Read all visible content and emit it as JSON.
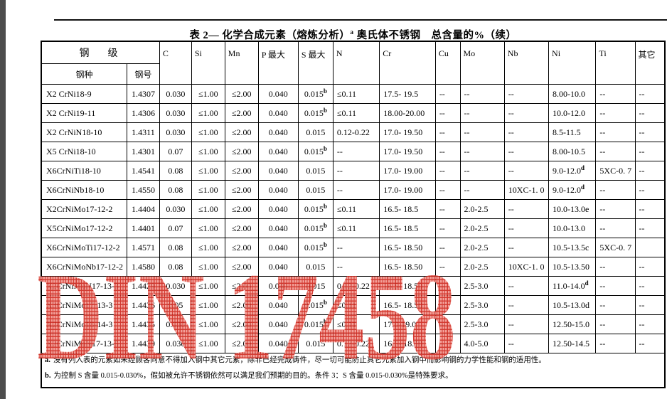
{
  "page": {
    "title": {
      "prefix": "表 2— 化学合成元素（熔炼分析）",
      "sup": "a",
      "suffix": " 奥氏体不锈钢　总含量的%（续）"
    },
    "watermark_text": "DIN 17458",
    "colors": {
      "watermark_red": "#d53026",
      "sidebar_gray": "#4d4d4d",
      "text": "#000000",
      "background": "#ffffff"
    }
  },
  "table": {
    "group_header": "钢　级",
    "sub_headers": [
      "钢种",
      "钢号"
    ],
    "element_headers": [
      "C",
      "Si",
      "Mn",
      "P 最大",
      "S 最大",
      "N",
      "Cr",
      "Cu",
      "Mo",
      "Nb",
      "Ni",
      "Ti",
      "其它"
    ],
    "rows": [
      [
        "X2 CrNi18-9",
        "1.4307",
        "0.030",
        "≤1.00",
        "≤2.00",
        "0.040",
        "0.015^b",
        "≤0.11",
        "17.5- 19.5",
        "--",
        "--",
        "--",
        "8.00-10.0",
        "--",
        "--"
      ],
      [
        "X2 CrNi19-11",
        "1.4306",
        "0.030",
        "≤1.00",
        "≤2.00",
        "0.040",
        "0.015^b",
        "≤0.11",
        "18.00-20.00",
        "--",
        "--",
        "--",
        "10.0-12.0",
        "--",
        "--"
      ],
      [
        "X2 CrNiN18-10",
        "1.4311",
        "0.030",
        "≤1.00",
        "≤2.00",
        "0.040",
        "0.015",
        "0.12-0.22",
        "17.0- 19.50",
        "--",
        "--",
        "--",
        "8.5-11.5",
        "--",
        "--"
      ],
      [
        "X5 CrNi18-10",
        "1.4301",
        "0.07",
        "≤1.00",
        "≤2.00",
        "0.040",
        "0.015^b",
        "--",
        "17.0- 19.50",
        "--",
        "--",
        "--",
        "8.00-10.5",
        "--",
        "--"
      ],
      [
        "X6CrNiTi18-10",
        "1.4541",
        "0.08",
        "≤1.00",
        "≤2.00",
        "0.040",
        "0.015",
        "--",
        "17.0- 19.00",
        "--",
        "--",
        "--",
        "9.0-12.0^d",
        "5XC-0. 7",
        "--"
      ],
      [
        "X6CrNiNb18-10",
        "1.4550",
        "0.08",
        "≤1.00",
        "≤2.00",
        "0.040",
        "0.015",
        "--",
        "17.0- 19.00",
        "--",
        "--",
        "10XC-1. 0",
        "9.0-12.0^d",
        "--",
        "--"
      ],
      [
        "X2CrNiMo17-12-2",
        "1.4404",
        "0.030",
        "≤1.00",
        "≤2.00",
        "0.040",
        "0.015^b",
        "≤0.11",
        "16.5- 18.5",
        "--",
        "2.0-2.5",
        "--",
        "10.0-13.0e",
        "--",
        "--"
      ],
      [
        "X5CrNiMo17-12-2",
        "1.4401",
        "0.07",
        "≤1.00",
        "≤2.00",
        "0.040",
        "0.015^b",
        "≤0.11",
        "16.5- 18.5",
        "--",
        "2.0-2.5",
        "--",
        "10.0-13.0",
        "--",
        "--"
      ],
      [
        "X6CrNiMoTi17-12-2",
        "1.4571",
        "0.08",
        "≤1.00",
        "≤2.00",
        "0.040",
        "0.015^b",
        "--",
        "16.5- 18.50",
        "--",
        "2.0-2.5",
        "--",
        "10.5-13.5c",
        "5XC-0. 7",
        ""
      ],
      [
        "X6CrNiMoNb17-12-2",
        "1.4580",
        "0.08",
        "≤1.00",
        "≤2.00",
        "0.040",
        "0.015",
        "--",
        "16.5- 18.50",
        "--",
        "2.0-2.5",
        "10XC-1. 0",
        "10.5-13.50",
        "--",
        "--"
      ],
      [
        "X2CrNiMoN17-13-3",
        "1.4429",
        "0.030",
        "≤1.00",
        "≤2.00",
        "0.040",
        "0.015",
        "0.12-0.22",
        "16.5- 18.50",
        "--",
        "2.5-3.0",
        "--",
        "11.0-14.0^d",
        "--",
        "--"
      ],
      [
        "X3CrNiMo17-13-3",
        "1.4436",
        "0.05",
        "≤1.00",
        "≤2.00",
        "0.040",
        "0.015^b",
        "≤0.11",
        "16.5- 18.50",
        "--",
        "2.5-3.0",
        "--",
        "10.5-13.0d",
        "--",
        "--"
      ],
      [
        "X2CrNiMo18-14-3",
        "1.4435",
        "0.030",
        "≤1.00",
        "≤2.00",
        "0.040",
        "0.015^b",
        "≤0.11",
        "17.0-19.0",
        "--",
        "2.5-3.0",
        "--",
        "12.50-15.0",
        "--",
        "--"
      ],
      [
        "X2CrNiMoN17-13-5",
        "1.4439",
        "0.030",
        "≤1.00",
        "≤2.00",
        "0.040",
        "0.015",
        "0.12-0.22",
        "16.5- 18.50",
        "--",
        "4.0-5.0",
        "--",
        "12.50-14.5",
        "--",
        "--"
      ]
    ],
    "footnotes": [
      {
        "marker": "a.",
        "text": "没有列入表的元素如未经顾客同意不得加入钢中其它元素，除非已经完成铸件，尽一切可能防止其它元素加入钢中而影响钢的力学性能和钢的适用性。"
      },
      {
        "marker": "b.",
        "text": "为控制 S 含量 0.015-0.030%，假如被允许不锈钢依然可以满足我们预期的目的。条件 3：S 含量 0.015-0.030%是特殊要求。"
      }
    ]
  }
}
